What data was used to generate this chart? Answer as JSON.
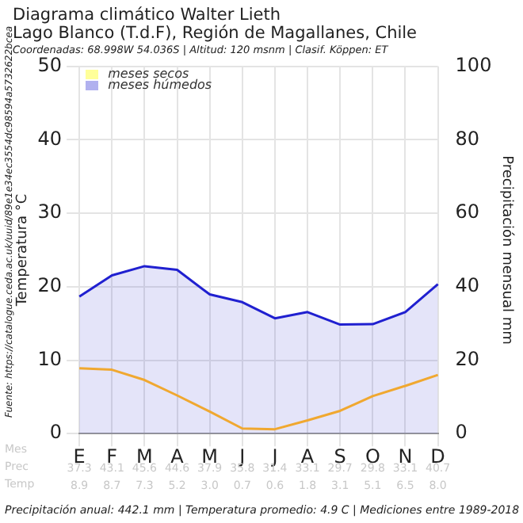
{
  "chart_data": {
    "type": "line",
    "title": [
      "Diagrama climático Walter Lieth",
      "Lago Blanco (T.d.F), Región de Magallanes, Chile"
    ],
    "subtitle": "Coordenadas: 68.998W 54.036S | Altitud: 120 msnm | Clasif. Köppen: ET",
    "categories": [
      "E",
      "F",
      "M",
      "A",
      "M",
      "J",
      "J",
      "A",
      "S",
      "O",
      "N",
      "D"
    ],
    "series": [
      {
        "color": "#f0a830",
        "values": [
          8.9,
          8.7,
          7.3,
          5.2,
          3.0,
          0.7,
          0.6,
          1.8,
          3.1,
          5.1,
          6.5,
          8.0
        ],
        "value_labels": [
          "8.9",
          "8.7",
          "7.3",
          "5.2",
          "3.0",
          "0.7",
          "0.6",
          "1.8",
          "3.1",
          "5.1",
          "6.5",
          "8.0"
        ]
      },
      {
        "type": "area",
        "axis": "y2",
        "color": "#2020d0",
        "values": [
          37.3,
          43.1,
          45.6,
          44.6,
          37.9,
          35.8,
          31.4,
          33.1,
          29.7,
          29.8,
          33.1,
          40.7
        ],
        "value_labels": [
          "37.3",
          "43.1",
          "45.6",
          "44.6",
          "37.9",
          "35.8",
          "31.4",
          "33.1",
          "29.7",
          "29.8",
          "33.1",
          "40.7"
        ]
      }
    ],
    "ylabel": "Temperatura °C",
    "y2label": "Precipitación mensual mm",
    "ylim": [
      0,
      50
    ],
    "yticks": [
      0,
      10,
      20,
      30,
      40,
      50
    ],
    "y2lim": [
      0,
      100
    ],
    "y2ticks": [
      0,
      20,
      40,
      60,
      80,
      100
    ],
    "grid": true,
    "data_labels": true,
    "annotations": [
      "meses secos",
      "meses húmedos",
      "Mes",
      "Prec",
      "Temp",
      "Precipitación anual: 442.1 mm | Temperatura promedio: 4.9 C | Mediciones entre 1989-2018",
      "Fuente: https://catalogue.ceda.ac.uk/uuid/89e1e34ec3554dc98594a5732622bcea"
    ]
  }
}
